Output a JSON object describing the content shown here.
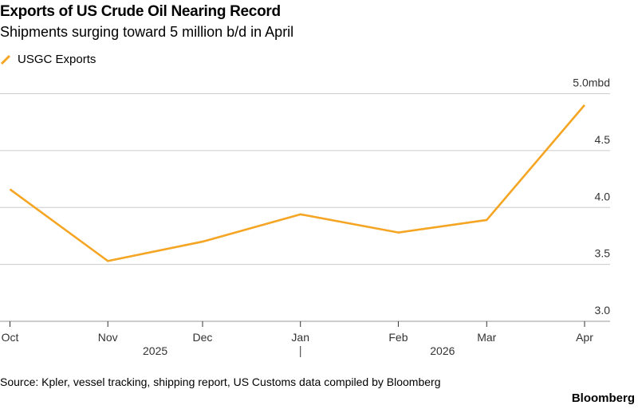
{
  "chart_data": {
    "type": "line",
    "title": "Exports of US Crude Oil Nearing Record",
    "subtitle": "Shipments surging toward 5 million b/d in April",
    "x": [
      "2025-10-01",
      "2025-11-01",
      "2025-12-01",
      "2026-01-01",
      "2026-02-01",
      "2026-03-01",
      "2026-04-01"
    ],
    "x_tick_labels": [
      "Oct",
      "Nov",
      "Dec",
      "Jan",
      "Feb",
      "Mar",
      "Apr"
    ],
    "x_year_labels": [
      "2025",
      "2026"
    ],
    "series": [
      {
        "name": "USGC Exports",
        "color": "#f5a524",
        "values": [
          4.16,
          3.53,
          3.7,
          3.94,
          3.78,
          3.89,
          4.9
        ]
      }
    ],
    "y_ticks": [
      "3.0",
      "3.5",
      "4.0",
      "4.5",
      "5.0mbd"
    ],
    "ylim": [
      3.0,
      5.0
    ],
    "grid": true,
    "legend_position": "top-left",
    "source": "Source: Kpler, vessel tracking, shipping report, US Customs data compiled by Bloomberg",
    "brand": "Bloomberg"
  }
}
